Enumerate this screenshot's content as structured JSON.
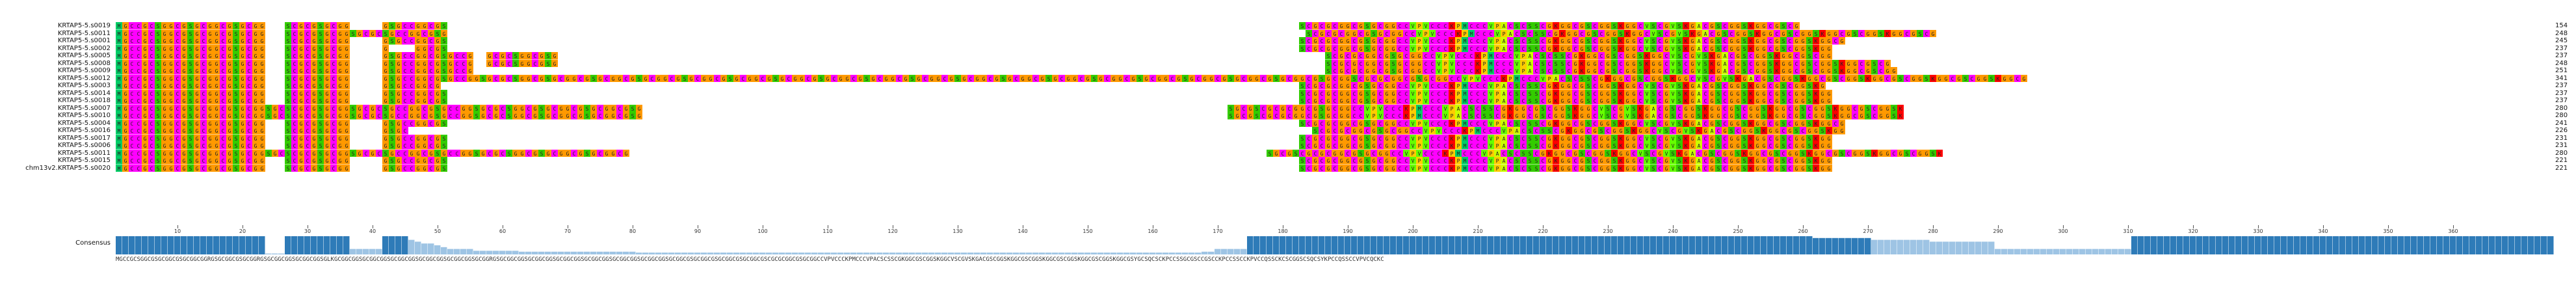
{
  "alignment": {
    "rows": [
      {
        "name": "KRTAP5-5.s0019",
        "seq": "MGCCGCSGGCGSGCGGCGSGCGG---SCGCGSGCGG-----GSGCCGGCGS-----------------------------------------------------------------------------------------------------------------------------------SCGCGCGGCGSGCGGCCVPVCCCKPMCCCVPACSCSSCGKGGCGSCGGSKGGCVSCGVSKGACGSCGGSKGGCGSCG",
        "count": "154"
      },
      {
        "name": "KRTAP5-5.s0011",
        "seq": "MGCCGCSGGCGSGCGGCGSGCGG---SCGCGSGCGGSGCGCSGCCGGCGSG------------------------------------------------------------------------------------------------------------------------------------SCGCGCGGCGSGCGGCCVPVCCCKPMCCCVPACSCSSCGKGGCGSCGGSKGGCVSCGVSKGACGSCGGSKGGCGSCGGSKGGCGSCGGSKGGCGSCG",
        "count": "248"
      },
      {
        "name": "KRTAP5-5.s0001",
        "seq": "MGCCGCSGGCGSGCGGCGSGCGG---SCGCGSGCGG-----GSGCCGGCGS-----------------------------------------------------------------------------------------------------------------------------------SCGCGCGGCGSGCGGCCVPVCCCKPMCCCVPACSCSSCGKGGCGSCGGSKGGCVSCGVSKGACGSCGGSKGGCGSCGGSKGGCG",
        "count": "245"
      },
      {
        "name": "KRTAP5-5.s0002",
        "seq": "MGCCGCSGGCGSGCGGCGSGCGG---SCGCGSGCGG-----G----GGCGS-----------------------------------------------------------------------------------------------------------------------------------SCGCGCGGCGSGCGGCCVPVCCCKPMCCCVPACSCSSCGKGGCGSCGGSKGGCVSCGVSKGACGSCGGSKGGCGSCGGSKGG",
        "count": "237"
      },
      {
        "name": "KRTAP5-5.s0005",
        "seq": "MGCCGCSGGCGSGCGGCGSGCGG---SCGCGSGCGG-----GSGCCGGCGSGCCG--GCGCSGGCGSG----------------------------------------------------------------------------------------------------------------------SCGCGCGGCGSGCGGCCVPVCCCKPMCCCVPACSCSSCGKGGCGSCGGSKGGCVSCGVSKGACGSCGGSKGGCGSCGG",
        "count": "237"
      },
      {
        "name": "KRTAP5-5.s0008",
        "seq": "MGCCGCSGGCGSGCGGCGSGCGG---SCGCGSGCGG-----GSGCCGGCGSGCCG--GCGCSGGCGSG----------------------------------------------------------------------------------------------------------------------SCGCGCGGCGSGCGGCCVPVCCCKPMCCCVPACSCSSCGKGGCGSCGGSKGGCVSCGVSKGACGSCGGSKGGCGSCGGSKGGCGSCG",
        "count": "248"
      },
      {
        "name": "KRTAP5-5.s0009",
        "seq": "MGCCGCSGGCGSGCGGCGSGCGG---SCGCGSGCGG-----GSGCCGGCGSGCCG-----------------------------------------------------------------------------------------------------------------------------------SCGCGCGGCGSGCGGCCVPVCCCKPMCCCVPACSCSSCGKGGCGSCGGSKGGCVSCGVSKGACGSCGGSKGGCGSCGGSKGGCGSCGG",
        "count": "251"
      },
      {
        "name": "KRTAP5-5.s0012",
        "seq": "MGCCGCSGGCGSGCGGCGSGCGG---SCGCGSGCGG-----GSGCCGGCGSGCCGGSGCGCSGGCGSGCGGCGSGCGGCGSGCGGCGSGCGGCGSGCGGCGSGCGGCGSGCGGCGSGCGGCGSGCGGCGSGCGGCGSGCGGCGSGCGGCGSGCGGCGSGCGGCGSGCGGCGSGCGGCGSGCGGCGSGCGGSCGCGCGGCGSGCGGCCVPVCCCKPMCCCVPACSCSSCGKGGCGSCGGSKGGCVSCGVSKGACGSCGGSKGGCGSCGGSKGGCGSCGGSKGGCGSCGGSKGGCG",
        "count": "341"
      },
      {
        "name": "KRTAP5-5.s0003",
        "seq": "MGCCGCSGGCGSGCGGCGSGCGG---SCGCGSGCGG-----GSGCCGGCG------------------------------------------------------------------------------------------------------------------------------------SCGCGCGGCGSGCGGCCVPVCCCKPMCCCVPACSCSSCGKGGCGSCGGSKGGCVSCGVSKGACGSCGGSKGGCGSCGGSKG",
        "count": "237"
      },
      {
        "name": "KRTAP5-5.s0014",
        "seq": "MGCCGCSGGCGSGCGGCGSGCGG---SCGCGSGCGG-----GSGCCGGCGS-----------------------------------------------------------------------------------------------------------------------------------SCGCGCGGCGSGCGGCCVPVCCCKPMCCCVPACSCSSCGKGGCGSCGGSKGGCVSCGVSKGACGSCGGSKGGCGSCGGSKGG",
        "count": "237"
      },
      {
        "name": "KRTAP5-5.s0018",
        "seq": "MGCCGCSGGCGSGCGGCGSGCGG---SCGCGSGCGG-----GSGCCGGCGS-----------------------------------------------------------------------------------------------------------------------------------SCGCGCGGCGSGCGGCCVPVCCCKPMCCCVPACSCSSCGKGGCGSCGGSKGGCVSCGVSKGACGSCGGSKGGCGSCGGSKGG",
        "count": "237"
      },
      {
        "name": "KRTAP5-5.s0007",
        "seq": "MGCCGCSGGCGSGCGGCGSGCGGSGCSCGCGSGCGGSGCGCSGCCGGCGSGCCGGSGCGCSGGCGSGCGGCGSGCGGCGSG------------------------------------------------------------------------------------------SGCGSCGCGCGGCGSGCGGCCVPVCCCKPMCCCVPACSCSSCGKGGCGSCGGSKGGCVSCGVSKGACGSCGGSKGGCGSCGGSKGGCGSCGGSKGGCGSCGGSK",
        "count": "280"
      },
      {
        "name": "KRTAP5-5.s0010",
        "seq": "MGCCGCSGGCGSGCGGCGSGCGGSGCSCGCGSGCGGSGCGCSGCCGGCGSGCCGGSGCGCSGGCGSGCGGCGSGCGGCGSG------------------------------------------------------------------------------------------SGCGSCGCGCGGCGSGCGGCCVPVCCCKPMCCCVPACSCSSCGKGGCGSCGGSKGGCVSCGVSKGACGSCGGSKGGCGSCGGSKGGCGSCGGSKGGCGSCGGSK",
        "count": "280"
      },
      {
        "name": "KRTAP5-5.s0004",
        "seq": "MGCCGCSGGCGSGCGGCGSGCGG---SCGCGSGCGG-----GSGCCGGCGS-----------------------------------------------------------------------------------------------------------------------------------SCGCGCGGCGSGCGGCCVPVCCCKPMCCCVPACSCSSCGKGGCGSCGGSKGGCVSCGVSKGACGSCGGSKGGCGSCGGSKGGCG",
        "count": "241"
      },
      {
        "name": "KRTAP5-5.s0016",
        "seq": "MGCCGCSGGCGSGCGGCGSGCGG---SCGCGSGCGG-----GSGC-------------------------------------------------------------------------------------------------------------------------------------------SCGCGCGGCGSGCGGCCVPVCCCKPMCCCVPACSCSSCGKGGCGSCGGSKGGCVSCGVSKGACGSCGGSKGGCGSCGGSKGG",
        "count": "226"
      },
      {
        "name": "KRTAP5-5.s0017",
        "seq": "MGCCGCSGGCGSGCGGCGSGCGG---SCGCGSGCGG-----GSGCCGGCGS-----------------------------------------------------------------------------------------------------------------------------------SCGCGCGGCGSGCGGCCVPVCCCKPMCCCVPACSCSSCGKGGCGSCGGSKGGCVSCGVSKGACGSCGGSKGGCGSCGGSKGG",
        "count": "231"
      },
      {
        "name": "KRTAP5-5.s0006",
        "seq": "MGCCGCSGGCGSGCGGCGSGCGG---SCGCGSGCGG-----GSGCCGGCGS-----------------------------------------------------------------------------------------------------------------------------------SCGCGCGGCGSGCGGCCVPVCCCKPMCCCVPACSCSSCGKGGCGSCGGSKGGCVSCGVSKGACGSCGGSKGGCGSCGGSKGG",
        "count": "231"
      },
      {
        "name": "KRTAP5-5.s0011",
        "seq": "MGCCGCSGGCGSGCGGCGSGCGGSGCSCGCGSGCGGSGCGCSGCCGGCGSGCCGGSGCGCSGGCGSGCGGCGSGCGGCG--------------------------------------------------------------------------------------------------SGCGSCGCGCGGCGSGCGGCCVPVCCCKPMCCCVPACSCSSCGKGGCGSCGGSKGGCVSCGVSKGACGSCGGSKGGCGSCGGSKGGCGSCGGSKGGCGSCGGSK",
        "count": "280"
      },
      {
        "name": "KRTAP5-5.s0015",
        "seq": "MGCCGCSGGCGSGCGGCGSGCGG---SCGCGSGCGG-----GSGCCGGCGS-----------------------------------------------------------------------------------------------------------------------------------SCGCGCGGCGSGCGGCCVPVCCCKPMCCCVPACSCSSCGKGGCGSCGGSKGGCVSCGVSKGACGSCGGSKGGCGSCGGSKGG",
        "count": "221"
      },
      {
        "name": "chm13v2.KRTAP5-5.s0020",
        "seq": "MGCCGCSGGCGSGCGGCGSGCGG---SCGCGSGCGG-----GSGCCGGCGS-----------------------------------------------------------------------------------------------------------------------------------SCGCGCGGCGSGCGGCCVPVCCCKPMCCCVPACSCSSCGKGGCGSCGGSKGGCVSCGVSKGACGSCGGSKGGCGSCGGSKGG",
        "count": "221"
      }
    ],
    "ruler_ticks": [
      "10",
      "20",
      "30",
      "40",
      "50",
      "60",
      "70",
      "80",
      "90",
      "100",
      "110",
      "120",
      "130",
      "140",
      "150",
      "160",
      "170",
      "180",
      "190",
      "200",
      "210",
      "220",
      "230",
      "240",
      "250",
      "260",
      "270",
      "280",
      "290",
      "300",
      "310",
      "320",
      "330",
      "340",
      "350",
      "360"
    ],
    "consensus_label": "Consensus",
    "consensus_seq": "MGCCGCSGGCGSGCGGCGSGCGGCGGRGSGCGGCGSGCGGRGSGCGGCGGSGCGGCGGSGLKGCGGCGGSGCGGCGGSGCGGCGGSGCGGCGGSGCGGCGGSGCGGRGSGCGGCGGSGCGGCGGSGCGGCGGSGCGGCGGSGCGGCGGSGCGGCGGSGCGGCGSGCGGCGSGCGGCGSGCGGCGSCGCGCGGCGSGCGGCCVPVCCCKPMCCCVPACSCSSCGKGGCGSCGGSKGGCVSCGVSKGACGSCGGSKGGCGSCGGSKGGCGSCGGSKGGCGSCGGSKGGCGSYGCSQCSCKPCCSSGCGSCCGSCCKPCCSSCCKPVCCQSSCKCSCGGSCSQCSYKPCCQSSCCVPVCQCKC",
    "consensus_heights": [
      1,
      1,
      1,
      1,
      1,
      1,
      1,
      1,
      1,
      1,
      1,
      1,
      1,
      1,
      1,
      1,
      1,
      1,
      1,
      1,
      1,
      1,
      1,
      0.05,
      0.05,
      0.05,
      1,
      1,
      1,
      1,
      1,
      1,
      1,
      1,
      1,
      1,
      0.3,
      0.3,
      0.3,
      0.3,
      0.3,
      1,
      1,
      1,
      1,
      0.8,
      0.7,
      0.6,
      0.6,
      0.5,
      0.4,
      0.3,
      0.3,
      0.3,
      0.3,
      0.2,
      0.2,
      0.2,
      0.2,
      0.2,
      0.2,
      0.2,
      0.15,
      0.15,
      0.15,
      0.15,
      0.15,
      0.15,
      0.15,
      0.15,
      0.15,
      0.15,
      0.15,
      0.15,
      0.15,
      0.15,
      0.15,
      0.15,
      0.15,
      0.15,
      0.1,
      0.1,
      0.1,
      0.1,
      0.1,
      0.1,
      0.1,
      0.1,
      0.1,
      0.1,
      0.1,
      0.1,
      0.1,
      0.1,
      0.1,
      0.1,
      0.1,
      0.1,
      0.1,
      0.1,
      0.1,
      0.1,
      0.1,
      0.1,
      0.1,
      0.1,
      0.1,
      0.1,
      0.1,
      0.1,
      0.1,
      0.1,
      0.1,
      0.1,
      0.1,
      0.1,
      0.1,
      0.1,
      0.1,
      0.1,
      0.1,
      0.1,
      0.1,
      0.1,
      0.1,
      0.1,
      0.1,
      0.1,
      0.1,
      0.1,
      0.1,
      0.1,
      0.1,
      0.1,
      0.1,
      0.1,
      0.1,
      0.1,
      0.1,
      0.1,
      0.1,
      0.1,
      0.1,
      0.1,
      0.1,
      0.1,
      0.1,
      0.1,
      0.1,
      0.1,
      0.1,
      0.1,
      0.1,
      0.1,
      0.1,
      0.1,
      0.1,
      0.1,
      0.1,
      0.1,
      0.1,
      0.1,
      0.1,
      0.1,
      0.1,
      0.1,
      0.1,
      0.15,
      0.15,
      0.3,
      0.3,
      0.3,
      0.3,
      0.3,
      1,
      1,
      1,
      1,
      1,
      1,
      1,
      1,
      1,
      1,
      1,
      1,
      1,
      1,
      1,
      1,
      1,
      1,
      1,
      1,
      1,
      1,
      1,
      1,
      1,
      1,
      1,
      1,
      1,
      1,
      1,
      1,
      1,
      1,
      1,
      1,
      1,
      1,
      1,
      1,
      1,
      1,
      1,
      1,
      1,
      1,
      1,
      1,
      1,
      1,
      1,
      1,
      1,
      1,
      1,
      1,
      1,
      1,
      1,
      1,
      1,
      1,
      1,
      1,
      1,
      1,
      1,
      1,
      1,
      1,
      1,
      1,
      1,
      1,
      1,
      1,
      1,
      1,
      1,
      1,
      1,
      1,
      1,
      1,
      1,
      1,
      1,
      0.9,
      0.9,
      0.9,
      0.9,
      0.9,
      0.9,
      0.9,
      0.9,
      0.9,
      0.8,
      0.8,
      0.8,
      0.8,
      0.8,
      0.8,
      0.8,
      0.8,
      0.8,
      0.7,
      0.7,
      0.7,
      0.7,
      0.7,
      0.7,
      0.7,
      0.7,
      0.7,
      0.7,
      0.3,
      0.3,
      0.3,
      0.3,
      0.3,
      0.3,
      0.3,
      0.3,
      0.3,
      0.3,
      0.3,
      0.3,
      0.3,
      0.3,
      0.3,
      0.3,
      0.3,
      0.3,
      0.3,
      0.3,
      0.3,
      1,
      1,
      1,
      1,
      1,
      1,
      1,
      1,
      1,
      1,
      1,
      1,
      1,
      1,
      1,
      1,
      1,
      1,
      1,
      1,
      1,
      1,
      1,
      1,
      1,
      1,
      1,
      1,
      1,
      1,
      1,
      1,
      1,
      1,
      1,
      1,
      1,
      1,
      1,
      1,
      1,
      1,
      1,
      1,
      1,
      1,
      1,
      1,
      1,
      1,
      1,
      1,
      1,
      1,
      1,
      1,
      1,
      1,
      1,
      1,
      1,
      1,
      1,
      1,
      1,
      1,
      1,
      1,
      1,
      1,
      1,
      1,
      1,
      1,
      1,
      1,
      1,
      1,
      1,
      1,
      1
    ],
    "colors": {
      "C": "#ff00ff",
      "G": "#ff9900",
      "S": "#33cc00",
      "V": "#66ff00",
      "P": "#ffcc00",
      "K": "#ff0000",
      "R": "#ff0000",
      "M": "#00cc66",
      "Y": "#33cccc",
      "Q": "#66cc33",
      "A": "#ccff00",
      "L": "#66ff00",
      "gap": "#ffffff",
      "text": "#222222",
      "consensus_bar": "#2e7bb8"
    }
  }
}
